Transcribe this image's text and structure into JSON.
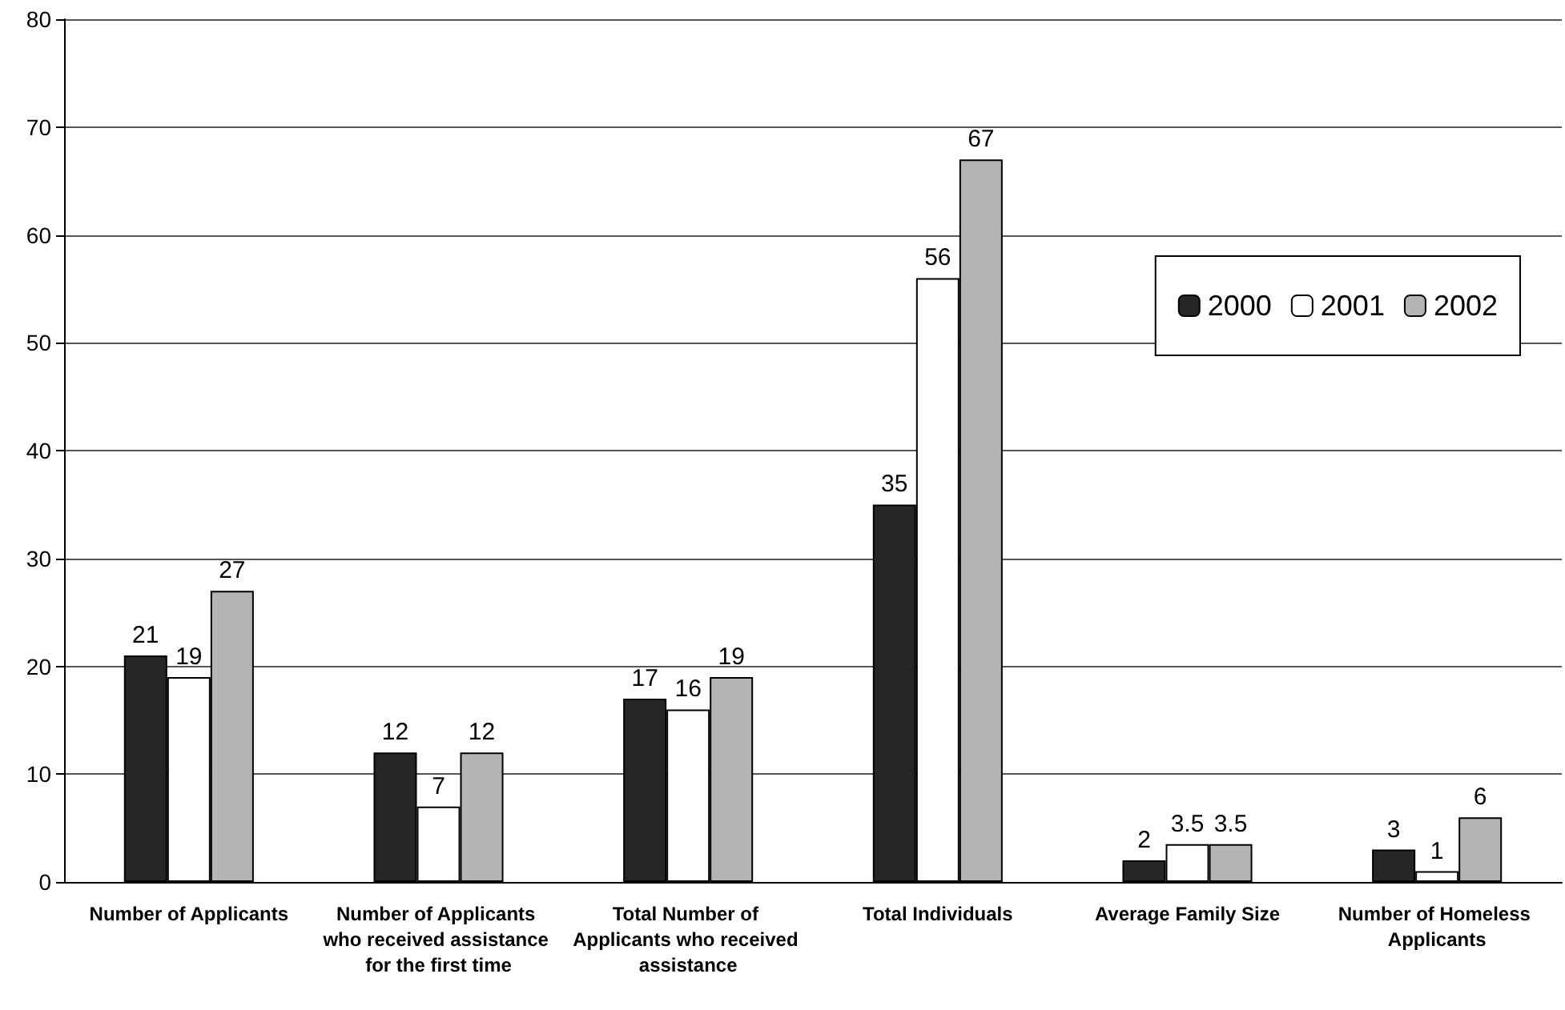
{
  "chart_data": {
    "type": "bar",
    "categories": [
      "Number of Applicants",
      "Number of Applicants who received assistance for the first time",
      "Total Number of Applicants who received assistance",
      "Total Individuals",
      "Average Family Size",
      "Number of Homeless Applicants"
    ],
    "series": [
      {
        "name": "2000",
        "color": "#262626",
        "values": [
          21,
          12,
          17,
          35,
          2,
          3
        ]
      },
      {
        "name": "2001",
        "color": "#ffffff",
        "values": [
          19,
          7,
          16,
          56,
          3.5,
          1
        ]
      },
      {
        "name": "2002",
        "color": "#b4b4b4",
        "values": [
          27,
          12,
          19,
          67,
          3.5,
          6
        ]
      }
    ],
    "ylim": [
      0,
      80
    ],
    "yticks": [
      0,
      10,
      20,
      30,
      40,
      50,
      60,
      70,
      80
    ],
    "grid": "y",
    "legend": "top right",
    "data_labels": true
  }
}
